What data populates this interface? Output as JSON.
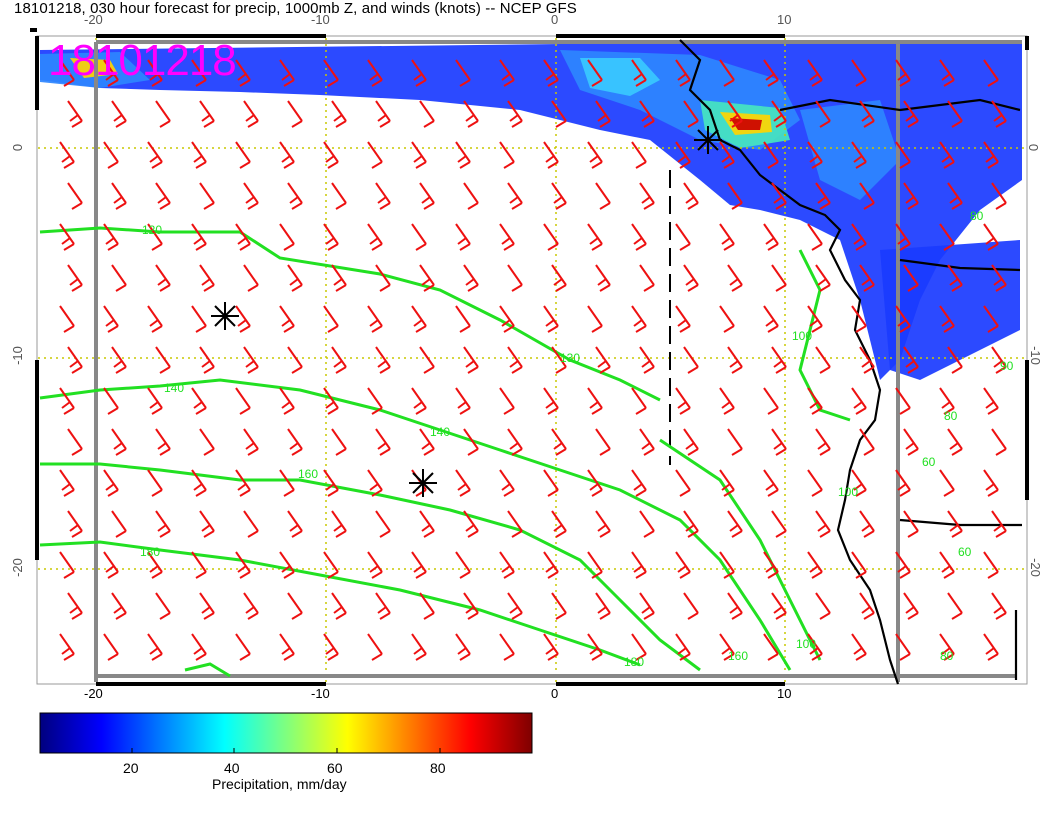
{
  "title": "18101218, 030 hour forecast for precip, 1000mb Z, and winds (knots) -- NCEP GFS",
  "stamp": "18101218",
  "axes": {
    "top_lon_labels": [
      "-20",
      "-10",
      "0",
      "10"
    ],
    "bottom_lon_labels": [
      "-20",
      "-10",
      "0",
      "10"
    ],
    "left_lat_labels": [
      "0",
      "-10",
      "-20"
    ],
    "right_lat_labels": [
      "0",
      "-10",
      "-20"
    ]
  },
  "contours": {
    "color": "#22e022",
    "labels": [
      "120",
      "130",
      "140",
      "140",
      "160",
      "180",
      "180",
      "160",
      "100",
      "100",
      "80",
      "80",
      "90",
      "60",
      "60",
      "80",
      "100"
    ]
  },
  "wind_color": "#ee1111",
  "markers": [
    "asterisk",
    "asterisk",
    "asterisk"
  ],
  "colorbar": {
    "label": "Precipitation, mm/day",
    "ticks": [
      "20",
      "40",
      "60",
      "80"
    ],
    "colors": [
      "#00007f",
      "#0000ff",
      "#007fff",
      "#00ffff",
      "#7fff7f",
      "#ffff00",
      "#ff7f00",
      "#ff0000",
      "#7f0000"
    ]
  }
}
